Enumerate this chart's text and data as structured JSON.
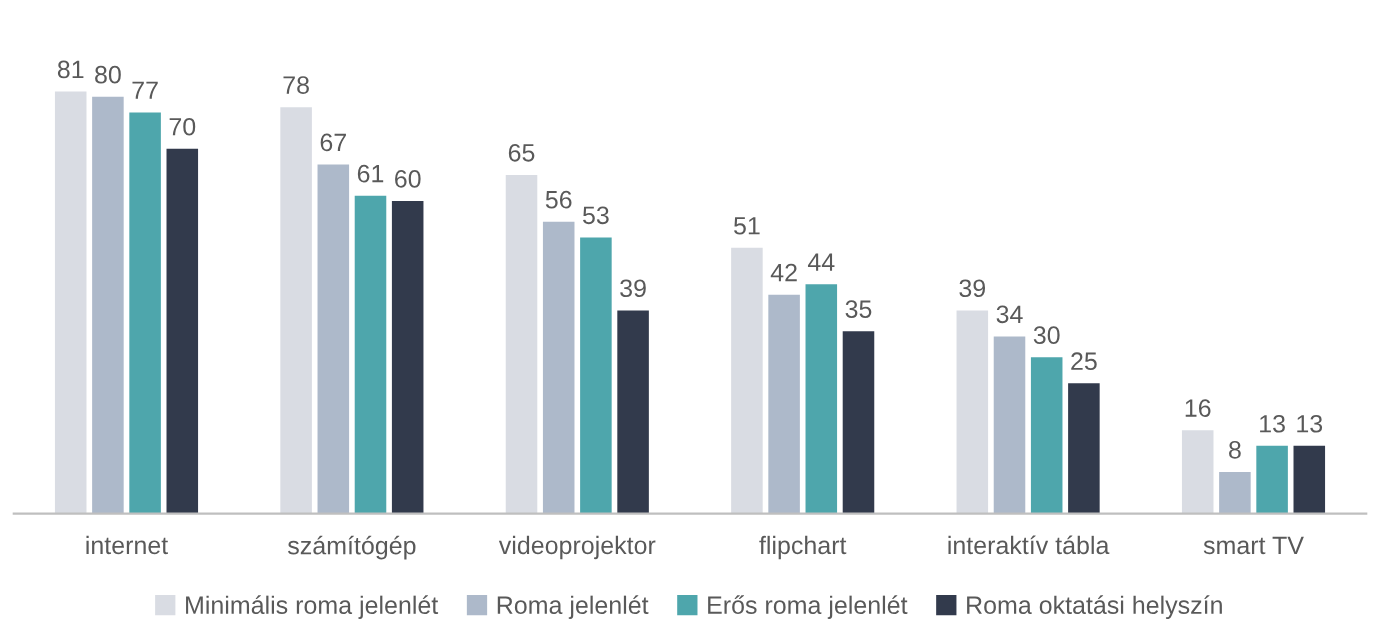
{
  "chart_data": {
    "type": "bar",
    "categories": [
      "internet",
      "számítógép",
      "videoprojektor",
      "flipchart",
      "interaktív tábla",
      "smart TV"
    ],
    "series": [
      {
        "name": "Minimális roma jelenlét",
        "color": "#d9dce3",
        "values": [
          81,
          78,
          65,
          51,
          39,
          16
        ]
      },
      {
        "name": "Roma jelenlét",
        "color": "#adb9ca",
        "values": [
          80,
          67,
          56,
          42,
          34,
          8
        ]
      },
      {
        "name": "Erős roma jelenlét",
        "color": "#4ea6ac",
        "values": [
          77,
          61,
          53,
          44,
          30,
          13
        ]
      },
      {
        "name": "Roma oktatási helyszín",
        "color": "#323a4c",
        "values": [
          70,
          60,
          39,
          35,
          25,
          13
        ]
      }
    ],
    "data_labels": true,
    "legend": "bottom",
    "grid": false
  }
}
